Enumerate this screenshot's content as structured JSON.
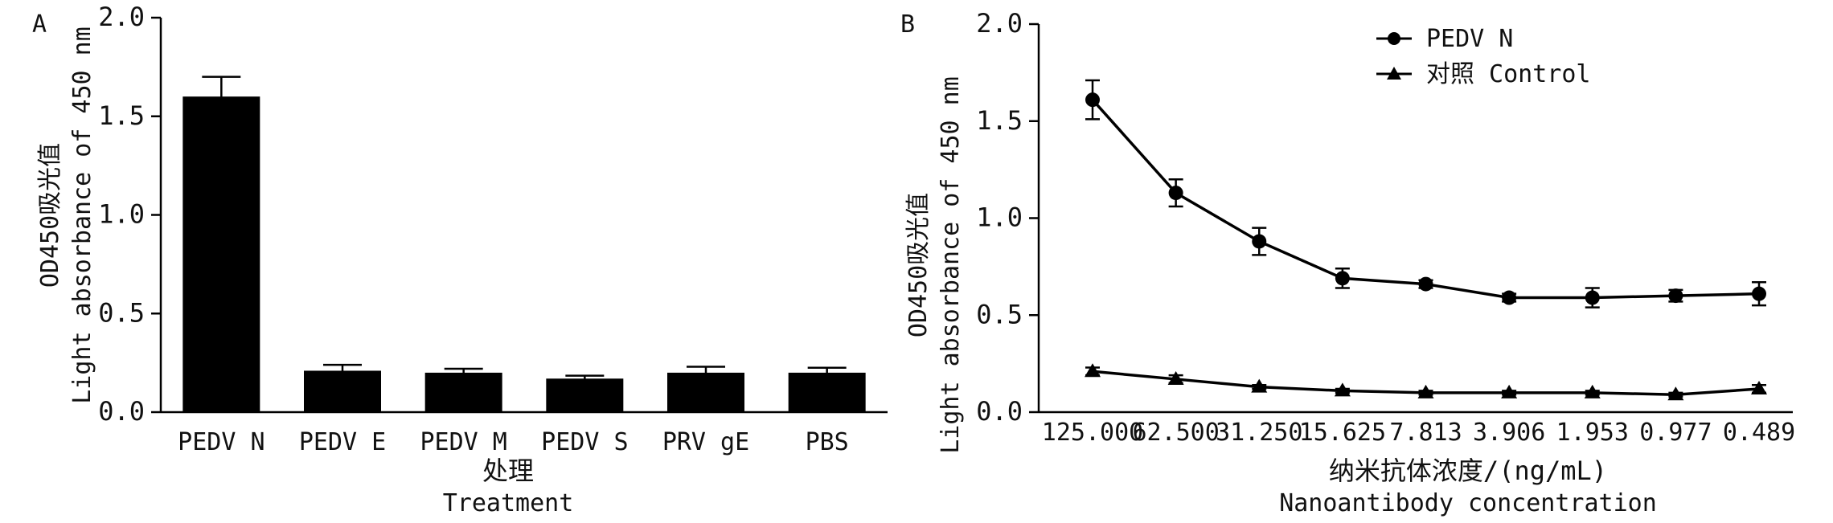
{
  "chart_data": [
    {
      "type": "bar",
      "panel_label": "A",
      "categories": [
        "PEDV  N",
        "PEDV  E",
        "PEDV  M",
        "PEDV  S",
        "PRV  gE",
        "PBS"
      ],
      "values": [
        1.6,
        0.21,
        0.2,
        0.17,
        0.2,
        0.2
      ],
      "errors": [
        0.1,
        0.03,
        0.02,
        0.015,
        0.03,
        0.025
      ],
      "xlabel_cn": "处理",
      "xlabel_en": "Treatment",
      "ylabel_cn": "OD450吸光值",
      "ylabel_en": "Light absorbance of 450 nm",
      "yticks": [
        "0.0",
        "0.5",
        "1.0",
        "1.5",
        "2.0"
      ],
      "ylim": [
        0,
        2.0
      ],
      "colors": {
        "bar": "#000000"
      }
    },
    {
      "type": "line",
      "panel_label": "B",
      "categories": [
        "125.000",
        "62.500",
        "31.250",
        "15.625",
        "7.813",
        "3.906",
        "1.953",
        "0.977",
        "0.489"
      ],
      "series": [
        {
          "name": "PEDV N",
          "marker": "circle",
          "values": [
            1.61,
            1.13,
            0.88,
            0.69,
            0.66,
            0.59,
            0.59,
            0.6,
            0.61
          ],
          "errors": [
            0.1,
            0.07,
            0.07,
            0.05,
            0.02,
            0.02,
            0.05,
            0.03,
            0.06
          ]
        },
        {
          "name": "对照 Control",
          "marker": "triangle",
          "values": [
            0.21,
            0.17,
            0.13,
            0.11,
            0.1,
            0.1,
            0.1,
            0.09,
            0.12
          ],
          "errors": [
            0.02,
            0.02,
            0.01,
            0.01,
            0.01,
            0.01,
            0.01,
            0.01,
            0.02
          ]
        }
      ],
      "xlabel_cn": "纳米抗体浓度/(ng/mL)",
      "xlabel_en": "Nanoantibody concentration",
      "ylabel_cn": "OD450吸光值",
      "ylabel_en": "Light absorbance of 450 nm",
      "yticks": [
        "0.0",
        "0.5",
        "1.0",
        "1.5",
        "2.0"
      ],
      "ylim": [
        0,
        2.0
      ],
      "legend_position": "top-center",
      "colors": {
        "line": "#000000"
      }
    }
  ]
}
